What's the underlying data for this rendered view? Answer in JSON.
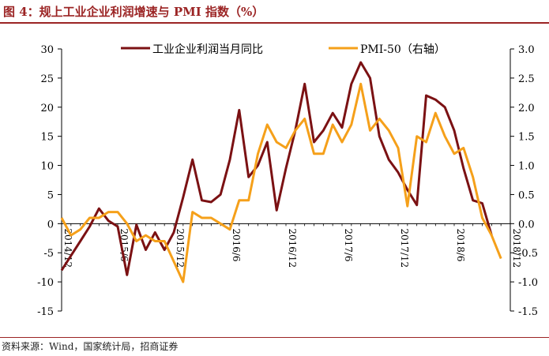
{
  "header": {
    "title": "图 4：规上工业企业利润增速与 PMI 指数（%）"
  },
  "footer": {
    "source": "资料来源：Wind，国家统计局，招商证券"
  },
  "colors": {
    "profit": "#7b1113",
    "pmi": "#f5a01a",
    "accent": "#9b2424"
  },
  "chart_data": {
    "type": "line",
    "x": [
      "2014/12",
      "2015/1",
      "2015/2",
      "2015/3",
      "2015/4",
      "2015/5",
      "2015/6",
      "2015/7",
      "2015/8",
      "2015/9",
      "2015/10",
      "2015/11",
      "2015/12",
      "2016/1",
      "2016/2",
      "2016/3",
      "2016/4",
      "2016/5",
      "2016/6",
      "2016/7",
      "2016/8",
      "2016/9",
      "2016/10",
      "2016/11",
      "2016/12",
      "2017/1",
      "2017/2",
      "2017/3",
      "2017/4",
      "2017/5",
      "2017/6",
      "2017/7",
      "2017/8",
      "2017/9",
      "2017/10",
      "2017/11",
      "2017/12",
      "2018/1",
      "2018/2",
      "2018/3",
      "2018/4",
      "2018/5",
      "2018/6",
      "2018/7",
      "2018/8",
      "2018/9",
      "2018/10",
      "2018/11",
      "2018/12"
    ],
    "x_tick_labels": [
      "2014/12",
      "2015/6",
      "2015/12",
      "2016/6",
      "2016/12",
      "2017/6",
      "2017/12",
      "2018/6",
      "2018/12"
    ],
    "series": [
      {
        "name": "工业企业利润当月同比",
        "axis": "left",
        "values": [
          -8,
          -5.5,
          -3,
          -0.5,
          2.6,
          0.5,
          -0.5,
          -8.8,
          -0.2,
          -4.5,
          -1.5,
          -4.5,
          -1.5,
          4.5,
          11,
          4,
          3.7,
          5,
          11,
          19.5,
          8,
          10,
          14,
          2.3,
          9.5,
          16,
          24,
          14,
          16,
          19,
          16.5,
          24,
          27.7,
          25,
          15,
          11,
          8.8,
          5.8,
          3.2,
          22,
          21.3,
          20,
          16,
          9.5,
          4,
          3.5,
          -2,
          null,
          null
        ]
      },
      {
        "name": "PMI-50（右轴）",
        "axis": "right",
        "values": [
          0.1,
          -0.2,
          -0.1,
          0.1,
          0.1,
          0.2,
          0.2,
          0,
          -0.3,
          -0.2,
          -0.3,
          -0.3,
          -0.65,
          -1,
          0.2,
          0.1,
          0.1,
          0,
          -0.1,
          0.4,
          0.4,
          1.2,
          1.7,
          1.4,
          1.3,
          1.6,
          1.8,
          1.2,
          1.2,
          1.7,
          1.4,
          1.7,
          2.4,
          1.6,
          1.8,
          1.6,
          1.3,
          0.3,
          1.5,
          1.4,
          1.9,
          1.5,
          1.2,
          1.3,
          0.8,
          0.1,
          -0.2,
          -0.6,
          null
        ]
      }
    ],
    "y_left": {
      "min": -15,
      "max": 30,
      "step": 5,
      "ticks": [
        "30",
        "25",
        "20",
        "15",
        "10",
        "5",
        "0",
        "-5",
        "-10",
        "-15"
      ]
    },
    "y_right": {
      "min": -1.5,
      "max": 3.0,
      "step": 0.5,
      "ticks": [
        "3.0",
        "2.5",
        "2.0",
        "1.5",
        "1.0",
        "0.5",
        "0.0",
        "-0.5",
        "-1.0",
        "-1.5"
      ]
    },
    "grid": false,
    "legend_position": "top"
  }
}
